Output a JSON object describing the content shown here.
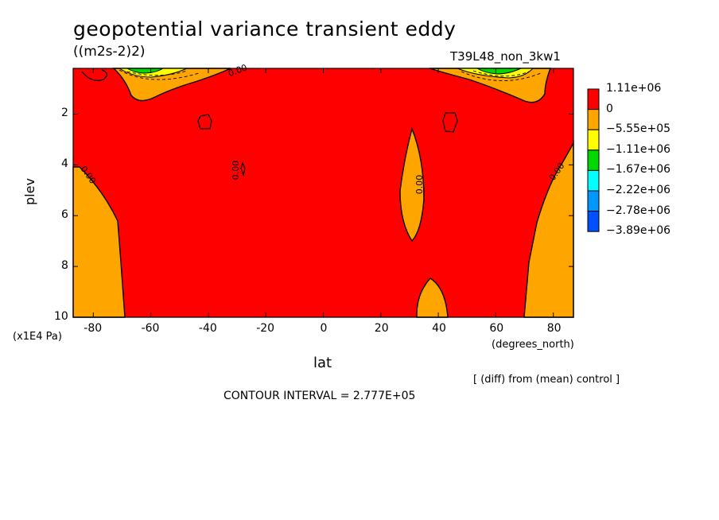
{
  "chart_data": {
    "type": "heatmap",
    "title": "geopotential variance transient eddy",
    "units": "((m2s-2)2)",
    "run_id": "T39L48_non_3kw1",
    "xlabel": "lat",
    "ylabel": "plev",
    "x_unit": "(degrees_north)",
    "y_unit": "(x1E4 Pa)",
    "xlim": [
      -87,
      87
    ],
    "ylim": [
      10,
      0.2
    ],
    "x_ticks": [
      "-80",
      "-60",
      "-40",
      "-20",
      "0",
      "20",
      "40",
      "60",
      "80"
    ],
    "x_tick_values": [
      -80,
      -60,
      -40,
      -20,
      0,
      20,
      40,
      60,
      80
    ],
    "y_ticks": [
      "2",
      "4",
      "6",
      "8",
      "10"
    ],
    "y_tick_values": [
      2,
      4,
      6,
      8,
      10
    ],
    "contour_labels": [
      "0.00",
      "0.00",
      "0.00",
      "0.00",
      "0.00"
    ],
    "note": "[ (diff) from (mean) control ]",
    "contour_interval": "CONTOUR INTERVAL = 2.777E+05",
    "colorbar": {
      "labels": [
        "1.11e+06",
        "0",
        "−5.55e+05",
        "−1.11e+06",
        "−1.67e+06",
        "−2.22e+06",
        "−2.78e+06",
        "−3.89e+06"
      ],
      "colors": [
        "#ff0000",
        "#ffa500",
        "#ffff00",
        "#00d800",
        "#00ffff",
        "#0096ff",
        "#0050ff"
      ]
    },
    "colors": {
      "positive": "#ff0000",
      "neg_small": "#ffa500",
      "yellow": "#ffff00",
      "green": "#00d800"
    }
  }
}
